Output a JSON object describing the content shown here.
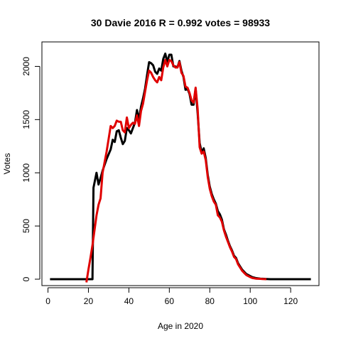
{
  "chart_data": {
    "type": "line",
    "title": "30 Davie 2016 R = 0.992 votes = 98933",
    "xlabel": "Age in 2020",
    "ylabel": "Votes",
    "xlim": [
      -3,
      134
    ],
    "ylim": [
      -60,
      2230
    ],
    "xticks": [
      0,
      20,
      40,
      60,
      80,
      100,
      120
    ],
    "yticks": [
      0,
      500,
      1000,
      1500,
      2000
    ],
    "grid": false,
    "legend": "none",
    "series": [
      {
        "color": "#000000",
        "points": [
          [
            1,
            0
          ],
          [
            21,
            0
          ],
          [
            22,
            0
          ],
          [
            22.5,
            860
          ],
          [
            24,
            1000
          ],
          [
            25,
            890
          ],
          [
            26,
            950
          ],
          [
            27,
            1020
          ],
          [
            29,
            1130
          ],
          [
            31,
            1220
          ],
          [
            32,
            1310
          ],
          [
            33,
            1290
          ],
          [
            34,
            1390
          ],
          [
            35,
            1400
          ],
          [
            36,
            1330
          ],
          [
            37,
            1270
          ],
          [
            38,
            1300
          ],
          [
            39,
            1420
          ],
          [
            40,
            1400
          ],
          [
            41,
            1370
          ],
          [
            42,
            1420
          ],
          [
            43,
            1470
          ],
          [
            44,
            1590
          ],
          [
            45,
            1500
          ],
          [
            46,
            1620
          ],
          [
            47,
            1700
          ],
          [
            48,
            1790
          ],
          [
            49,
            1920
          ],
          [
            50,
            2040
          ],
          [
            51,
            2030
          ],
          [
            52,
            2010
          ],
          [
            53,
            1950
          ],
          [
            54,
            1930
          ],
          [
            55,
            1980
          ],
          [
            56,
            1960
          ],
          [
            57,
            2070
          ],
          [
            58,
            2120
          ],
          [
            59,
            2040
          ],
          [
            60,
            2110
          ],
          [
            61,
            2110
          ],
          [
            62,
            2000
          ],
          [
            63,
            2000
          ],
          [
            64,
            1990
          ],
          [
            65,
            2050
          ],
          [
            66,
            1960
          ],
          [
            67,
            1900
          ],
          [
            68,
            1780
          ],
          [
            69,
            1790
          ],
          [
            70,
            1740
          ],
          [
            71,
            1640
          ],
          [
            72,
            1640
          ],
          [
            73,
            1790
          ],
          [
            74,
            1560
          ],
          [
            75,
            1280
          ],
          [
            76,
            1190
          ],
          [
            77,
            1230
          ],
          [
            78,
            1140
          ],
          [
            79,
            980
          ],
          [
            80,
            870
          ],
          [
            81,
            800
          ],
          [
            82,
            750
          ],
          [
            83,
            710
          ],
          [
            84,
            640
          ],
          [
            85,
            610
          ],
          [
            86,
            560
          ],
          [
            87,
            470
          ],
          [
            88,
            420
          ],
          [
            89,
            360
          ],
          [
            90,
            310
          ],
          [
            91,
            270
          ],
          [
            92,
            220
          ],
          [
            93,
            200
          ],
          [
            94,
            150
          ],
          [
            95,
            120
          ],
          [
            96,
            90
          ],
          [
            97,
            70
          ],
          [
            98,
            50
          ],
          [
            99,
            40
          ],
          [
            100,
            30
          ],
          [
            101,
            20
          ],
          [
            102,
            15
          ],
          [
            103,
            10
          ],
          [
            104,
            8
          ],
          [
            105,
            5
          ],
          [
            106,
            4
          ],
          [
            107,
            3
          ],
          [
            108,
            2
          ],
          [
            110,
            0
          ],
          [
            130,
            0
          ]
        ]
      },
      {
        "color": "#e00000",
        "points": [
          [
            19,
            -30
          ],
          [
            20,
            90
          ],
          [
            21,
            200
          ],
          [
            22,
            320
          ],
          [
            23,
            460
          ],
          [
            24,
            600
          ],
          [
            25,
            700
          ],
          [
            26,
            760
          ],
          [
            27,
            1000
          ],
          [
            28,
            1100
          ],
          [
            29,
            1200
          ],
          [
            30,
            1320
          ],
          [
            31,
            1440
          ],
          [
            32,
            1420
          ],
          [
            33,
            1440
          ],
          [
            34,
            1490
          ],
          [
            35,
            1480
          ],
          [
            36,
            1480
          ],
          [
            37,
            1400
          ],
          [
            38,
            1380
          ],
          [
            39,
            1520
          ],
          [
            40,
            1420
          ],
          [
            41,
            1450
          ],
          [
            42,
            1470
          ],
          [
            43,
            1460
          ],
          [
            44,
            1540
          ],
          [
            45,
            1440
          ],
          [
            46,
            1580
          ],
          [
            47,
            1650
          ],
          [
            48,
            1760
          ],
          [
            49,
            1870
          ],
          [
            50,
            1960
          ],
          [
            51,
            1940
          ],
          [
            52,
            1900
          ],
          [
            53,
            1870
          ],
          [
            54,
            1850
          ],
          [
            55,
            1900
          ],
          [
            56,
            1870
          ],
          [
            57,
            1990
          ],
          [
            58,
            2060
          ],
          [
            59,
            2000
          ],
          [
            60,
            2060
          ],
          [
            61,
            2050
          ],
          [
            62,
            2010
          ],
          [
            63,
            1990
          ],
          [
            64,
            1990
          ],
          [
            65,
            2040
          ],
          [
            66,
            1940
          ],
          [
            67,
            1910
          ],
          [
            68,
            1810
          ],
          [
            69,
            1800
          ],
          [
            70,
            1750
          ],
          [
            71,
            1680
          ],
          [
            72,
            1660
          ],
          [
            73,
            1800
          ],
          [
            74,
            1600
          ],
          [
            75,
            1240
          ],
          [
            76,
            1180
          ],
          [
            77,
            1200
          ],
          [
            78,
            1120
          ],
          [
            79,
            960
          ],
          [
            80,
            850
          ],
          [
            81,
            780
          ],
          [
            82,
            730
          ],
          [
            83,
            700
          ],
          [
            84,
            600
          ],
          [
            85,
            580
          ],
          [
            86,
            540
          ],
          [
            87,
            460
          ],
          [
            88,
            400
          ],
          [
            89,
            350
          ],
          [
            90,
            300
          ],
          [
            91,
            260
          ],
          [
            92,
            210
          ],
          [
            93,
            190
          ],
          [
            94,
            140
          ],
          [
            95,
            110
          ],
          [
            96,
            80
          ],
          [
            97,
            60
          ],
          [
            98,
            40
          ],
          [
            99,
            30
          ],
          [
            100,
            20
          ],
          [
            101,
            12
          ],
          [
            102,
            8
          ],
          [
            103,
            5
          ],
          [
            104,
            4
          ],
          [
            105,
            3
          ],
          [
            106,
            2
          ],
          [
            107,
            1
          ],
          [
            108,
            0
          ]
        ]
      }
    ]
  }
}
